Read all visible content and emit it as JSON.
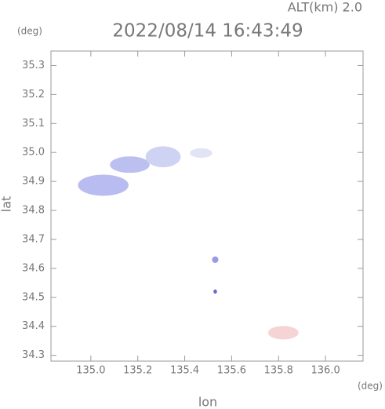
{
  "chart_data": {
    "type": "scatter",
    "title": "2022/08/14 16:43:49",
    "subtitle": "ALT(km) 2.0",
    "xlabel": "lon",
    "ylabel": "lat",
    "x_unit": "(deg)",
    "y_unit": "(deg)",
    "x": [
      135.053,
      135.166,
      135.308,
      135.47,
      135.53,
      135.53,
      135.82
    ],
    "y": [
      34.887,
      34.958,
      34.985,
      34.998,
      34.63,
      34.52,
      34.378
    ],
    "rx": [
      0.106,
      0.083,
      0.073,
      0.046,
      0.012,
      0.006,
      0.063
    ],
    "ry": [
      0.035,
      0.027,
      0.035,
      0.015,
      0.01,
      0.006,
      0.022
    ],
    "colors": [
      "#b8bcf0",
      "#bcc0f0",
      "#cfd3f3",
      "#e2e4f6",
      "#9a9ae8",
      "#6a6acc",
      "#f6d4d6"
    ],
    "xlim": [
      134.83,
      136.16
    ],
    "ylim": [
      34.28,
      35.35
    ],
    "xticks": [
      {
        "value": 135,
        "label": "135.0"
      },
      135.2,
      135.4,
      135.6,
      135.8,
      {
        "value": 136,
        "label": "136.0"
      }
    ],
    "yticks": [
      34.3,
      34.4,
      34.5,
      34.6,
      34.7,
      34.8,
      34.9,
      {
        "value": 35,
        "label": "35.0"
      },
      35.1,
      35.2,
      35.3
    ],
    "grid": false
  }
}
